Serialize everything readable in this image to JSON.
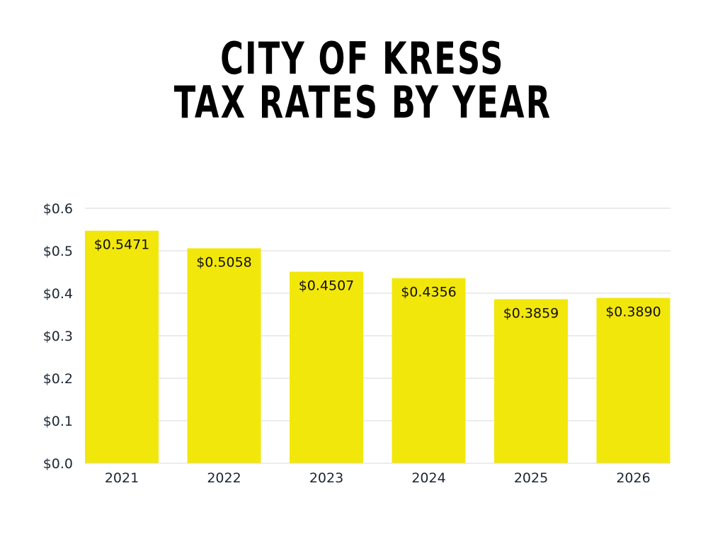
{
  "chart_data": {
    "type": "bar",
    "title": [
      "CITY OF KRESS",
      "TAX RATES BY YEAR"
    ],
    "categories": [
      "2021",
      "2022",
      "2023",
      "2024",
      "2025",
      "2026"
    ],
    "values": [
      0.5471,
      0.5058,
      0.4507,
      0.4356,
      0.3859,
      0.389
    ],
    "data_labels": [
      "$0.5471",
      "$0.5058",
      "$0.4507",
      "$0.4356",
      "$0.3859",
      "$0.3890"
    ],
    "y_ticks": [
      "$0.0",
      "$0.1",
      "$0.2",
      "$0.3",
      "$0.4",
      "$0.5",
      "$0.6"
    ],
    "ylim": [
      0,
      0.6
    ],
    "xlabel": "",
    "ylabel": "",
    "grid": true,
    "legend": "none",
    "colors": {
      "bar": "#F2E70B",
      "grid": "#d9d9d9",
      "text": "#1b2633"
    }
  }
}
